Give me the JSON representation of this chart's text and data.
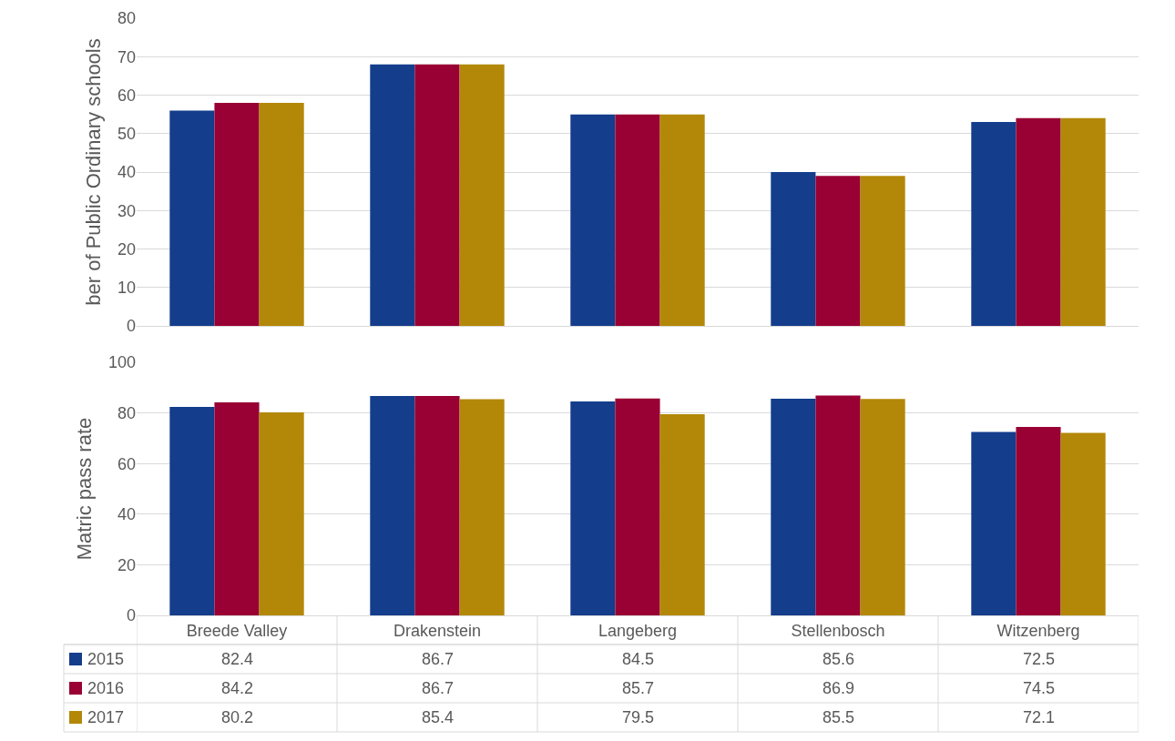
{
  "chart_data": [
    {
      "type": "bar",
      "ylabel": "ber of Public Ordinary schools",
      "categories": [
        null,
        null,
        null,
        null,
        null
      ],
      "ylim": [
        0,
        80
      ],
      "yticks": [
        0,
        10,
        20,
        30,
        40,
        50,
        60,
        70,
        80
      ],
      "grid": "y",
      "series": [
        {
          "color": "#143d8c",
          "values": [
            56,
            68,
            55,
            40,
            53
          ]
        },
        {
          "color": "#990033",
          "values": [
            58,
            68,
            55,
            39,
            54
          ]
        },
        {
          "color": "#b38808",
          "values": [
            58,
            68,
            55,
            39,
            54
          ]
        }
      ]
    },
    {
      "type": "bar",
      "ylabel": "Matric pass rate",
      "categories": [
        "Breede Valley",
        "Drakenstein",
        "Langeberg",
        "Stellenbosch",
        "Witzenberg"
      ],
      "ylim": [
        0,
        100
      ],
      "yticks": [
        0,
        20,
        40,
        60,
        80,
        100
      ],
      "grid": "y",
      "legend": "bottom",
      "data_labels": true,
      "series": [
        {
          "name": "2015",
          "color": "#143d8c",
          "values": [
            82.4,
            86.7,
            84.5,
            85.6,
            72.5
          ]
        },
        {
          "name": "2016",
          "color": "#990033",
          "values": [
            84.2,
            86.7,
            85.7,
            86.9,
            74.5
          ]
        },
        {
          "name": "2017",
          "color": "#b38808",
          "values": [
            80.2,
            85.4,
            79.5,
            85.5,
            72.1
          ]
        }
      ]
    }
  ]
}
